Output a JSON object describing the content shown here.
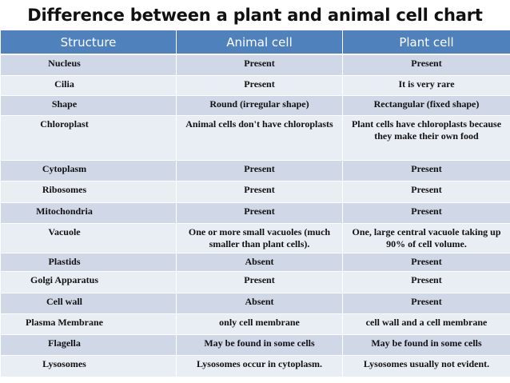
{
  "title": "Difference between a plant and animal cell chart",
  "columns": [
    "Structure",
    "Animal cell",
    "Plant cell"
  ],
  "colors": {
    "header": "#4f81bd",
    "row_dark": "#d0d8e8",
    "row_light": "#e9edf4"
  },
  "rows": [
    {
      "structure": "Nucleus",
      "animal": "Present",
      "plant": "Present"
    },
    {
      "structure": "Cilia",
      "animal": "Present",
      "plant": "It is very rare"
    },
    {
      "structure": "Shape",
      "animal": "Round (irregular shape)",
      "plant": "Rectangular (fixed shape)"
    },
    {
      "structure": "Chloroplast",
      "animal": "Animal cells don't have chloroplasts",
      "plant": "Plant cells have chloroplasts because they make their own food"
    },
    {
      "structure": "Cytoplasm",
      "animal": "Present",
      "plant": "Present"
    },
    {
      "structure": "Ribosomes",
      "animal": "Present",
      "plant": "Present"
    },
    {
      "structure": "Mitochondria",
      "animal": "Present",
      "plant": "Present"
    },
    {
      "structure": "Vacuole",
      "animal": "One or more small vacuoles (much smaller than plant cells).",
      "plant": "One, large central vacuole taking up 90% of cell volume."
    },
    {
      "structure": "Plastids",
      "animal": "Absent",
      "plant": "Present"
    },
    {
      "structure": "Golgi Apparatus",
      "animal": "Present",
      "plant": "Present"
    },
    {
      "structure": "Cell wall",
      "animal": "Absent",
      "plant": "Present"
    },
    {
      "structure": "Plasma Membrane",
      "animal": "only cell membrane",
      "plant": "cell wall and a cell membrane"
    },
    {
      "structure": "Flagella",
      "animal": "May be found in some cells",
      "plant": "May be found in some cells"
    },
    {
      "structure": "Lysosomes",
      "animal": "Lysosomes occur in cytoplasm.",
      "plant": "Lysosomes usually not evident."
    }
  ]
}
